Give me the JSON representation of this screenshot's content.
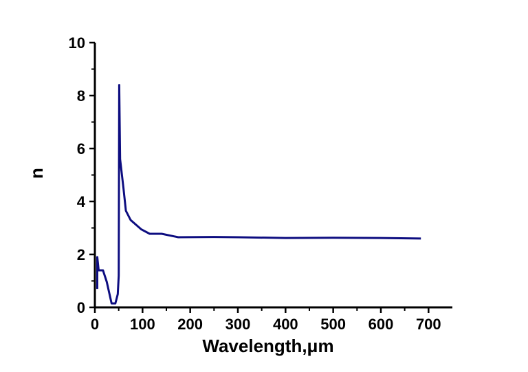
{
  "chart_data": {
    "type": "line",
    "title": "",
    "xlabel": "Wavelength,μm",
    "ylabel": "n",
    "xlim": [
      0,
      750
    ],
    "ylim": [
      0,
      10
    ],
    "xticks": [
      0,
      100,
      200,
      300,
      400,
      500,
      600,
      700
    ],
    "yticks": [
      0,
      2,
      4,
      6,
      8,
      10
    ],
    "grid": false,
    "line_color": "#0d0d80",
    "series": [
      {
        "x": [
          5,
          5,
          8,
          17,
          25,
          35,
          43,
          48,
          50,
          51,
          53,
          60,
          65,
          75,
          97,
          115,
          140,
          175,
          250,
          300,
          400,
          500,
          600,
          684
        ],
        "y": [
          0.7,
          1.9,
          1.4,
          1.4,
          0.96,
          0.15,
          0.15,
          0.5,
          1.2,
          8.4,
          5.6,
          4.5,
          3.65,
          3.3,
          2.95,
          2.78,
          2.78,
          2.65,
          2.66,
          2.65,
          2.62,
          2.63,
          2.62,
          2.6
        ]
      }
    ]
  }
}
